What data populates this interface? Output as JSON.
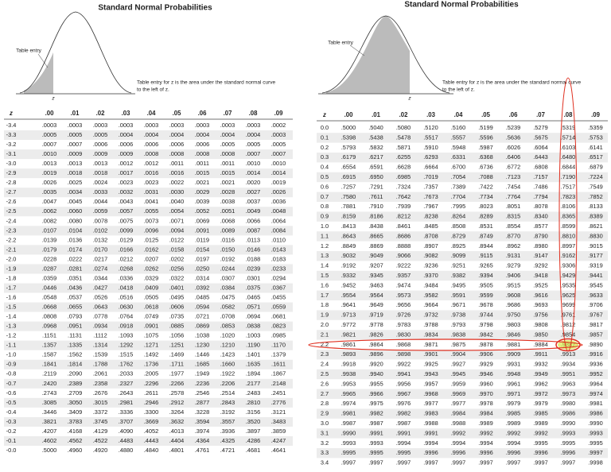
{
  "left": {
    "title": "Standard Normal Probabilities",
    "curve_label": "Table entry",
    "z_label": "z",
    "caption": [
      "Table entry for z is the area under the standard normal curve",
      "to the left of z."
    ],
    "header": [
      "z",
      ".00",
      ".01",
      ".02",
      ".03",
      ".04",
      ".05",
      ".06",
      ".07",
      ".08",
      ".09"
    ],
    "rows": [
      [
        "-3.4",
        ".0003",
        ".0003",
        ".0003",
        ".0003",
        ".0003",
        ".0003",
        ".0003",
        ".0003",
        ".0003",
        ".0002"
      ],
      [
        "-3.3",
        ".0005",
        ".0005",
        ".0005",
        ".0004",
        ".0004",
        ".0004",
        ".0004",
        ".0004",
        ".0004",
        ".0003"
      ],
      [
        "-3.2",
        ".0007",
        ".0007",
        ".0006",
        ".0006",
        ".0006",
        ".0006",
        ".0006",
        ".0005",
        ".0005",
        ".0005"
      ],
      [
        "-3.1",
        ".0010",
        ".0009",
        ".0009",
        ".0009",
        ".0008",
        ".0008",
        ".0008",
        ".0008",
        ".0007",
        ".0007"
      ],
      [
        "-3.0",
        ".0013",
        ".0013",
        ".0013",
        ".0012",
        ".0012",
        ".0011",
        ".0011",
        ".0011",
        ".0010",
        ".0010"
      ],
      [
        "-2.9",
        ".0019",
        ".0018",
        ".0018",
        ".0017",
        ".0016",
        ".0016",
        ".0015",
        ".0015",
        ".0014",
        ".0014"
      ],
      [
        "-2.8",
        ".0026",
        ".0025",
        ".0024",
        ".0023",
        ".0023",
        ".0022",
        ".0021",
        ".0021",
        ".0020",
        ".0019"
      ],
      [
        "-2.7",
        ".0035",
        ".0034",
        ".0033",
        ".0032",
        ".0031",
        ".0030",
        ".0029",
        ".0028",
        ".0027",
        ".0026"
      ],
      [
        "-2.6",
        ".0047",
        ".0045",
        ".0044",
        ".0043",
        ".0041",
        ".0040",
        ".0039",
        ".0038",
        ".0037",
        ".0036"
      ],
      [
        "-2.5",
        ".0062",
        ".0060",
        ".0059",
        ".0057",
        ".0055",
        ".0054",
        ".0052",
        ".0051",
        ".0049",
        ".0048"
      ],
      [
        "-2.4",
        ".0082",
        ".0080",
        ".0078",
        ".0075",
        ".0073",
        ".0071",
        ".0069",
        ".0068",
        ".0066",
        ".0064"
      ],
      [
        "-2.3",
        ".0107",
        ".0104",
        ".0102",
        ".0099",
        ".0096",
        ".0094",
        ".0091",
        ".0089",
        ".0087",
        ".0084"
      ],
      [
        "-2.2",
        ".0139",
        ".0136",
        ".0132",
        ".0129",
        ".0125",
        ".0122",
        ".0119",
        ".0116",
        ".0113",
        ".0110"
      ],
      [
        "-2.1",
        ".0179",
        ".0174",
        ".0170",
        ".0166",
        ".0162",
        ".0158",
        ".0154",
        ".0150",
        ".0146",
        ".0143"
      ],
      [
        "-2.0",
        ".0228",
        ".0222",
        ".0217",
        ".0212",
        ".0207",
        ".0202",
        ".0197",
        ".0192",
        ".0188",
        ".0183"
      ],
      [
        "-1.9",
        ".0287",
        ".0281",
        ".0274",
        ".0268",
        ".0262",
        ".0256",
        ".0250",
        ".0244",
        ".0239",
        ".0233"
      ],
      [
        "-1.8",
        ".0359",
        ".0351",
        ".0344",
        ".0336",
        ".0329",
        ".0322",
        ".0314",
        ".0307",
        ".0301",
        ".0294"
      ],
      [
        "-1.7",
        ".0446",
        ".0436",
        ".0427",
        ".0418",
        ".0409",
        ".0401",
        ".0392",
        ".0384",
        ".0375",
        ".0367"
      ],
      [
        "-1.6",
        ".0548",
        ".0537",
        ".0526",
        ".0516",
        ".0505",
        ".0495",
        ".0485",
        ".0475",
        ".0465",
        ".0455"
      ],
      [
        "-1.5",
        ".0668",
        ".0655",
        ".0643",
        ".0630",
        ".0618",
        ".0606",
        ".0594",
        ".0582",
        ".0571",
        ".0559"
      ],
      [
        "-1.4",
        ".0808",
        ".0793",
        ".0778",
        ".0764",
        ".0749",
        ".0735",
        ".0721",
        ".0708",
        ".0694",
        ".0681"
      ],
      [
        "-1.3",
        ".0968",
        ".0951",
        ".0934",
        ".0918",
        ".0901",
        ".0885",
        ".0869",
        ".0853",
        ".0838",
        ".0823"
      ],
      [
        "-1.2",
        ".1151",
        ".1131",
        ".1112",
        ".1093",
        ".1075",
        ".1056",
        ".1038",
        ".1020",
        ".1003",
        ".0985"
      ],
      [
        "-1.1",
        ".1357",
        ".1335",
        ".1314",
        ".1292",
        ".1271",
        ".1251",
        ".1230",
        ".1210",
        ".1190",
        ".1170"
      ],
      [
        "-1.0",
        ".1587",
        ".1562",
        ".1539",
        ".1515",
        ".1492",
        ".1469",
        ".1446",
        ".1423",
        ".1401",
        ".1379"
      ],
      [
        "-0.9",
        ".1841",
        ".1814",
        ".1788",
        ".1762",
        ".1736",
        ".1711",
        ".1685",
        ".1660",
        ".1635",
        ".1611"
      ],
      [
        "-0.8",
        ".2119",
        ".2090",
        ".2061",
        ".2033",
        ".2005",
        ".1977",
        ".1949",
        ".1922",
        ".1894",
        ".1867"
      ],
      [
        "-0.7",
        ".2420",
        ".2389",
        ".2358",
        ".2327",
        ".2296",
        ".2266",
        ".2236",
        ".2206",
        ".2177",
        ".2148"
      ],
      [
        "-0.6",
        ".2743",
        ".2709",
        ".2676",
        ".2643",
        ".2611",
        ".2578",
        ".2546",
        ".2514",
        ".2483",
        ".2451"
      ],
      [
        "-0.5",
        ".3085",
        ".3050",
        ".3015",
        ".2981",
        ".2946",
        ".2912",
        ".2877",
        ".2843",
        ".2810",
        ".2776"
      ],
      [
        "-0.4",
        ".3446",
        ".3409",
        ".3372",
        ".3336",
        ".3300",
        ".3264",
        ".3228",
        ".3192",
        ".3156",
        ".3121"
      ],
      [
        "-0.3",
        ".3821",
        ".3783",
        ".3745",
        ".3707",
        ".3669",
        ".3632",
        ".3594",
        ".3557",
        ".3520",
        ".3483"
      ],
      [
        "-0.2",
        ".4207",
        ".4168",
        ".4129",
        ".4090",
        ".4052",
        ".4013",
        ".3974",
        ".3936",
        ".3897",
        ".3859"
      ],
      [
        "-0.1",
        ".4602",
        ".4562",
        ".4522",
        ".4483",
        ".4443",
        ".4404",
        ".4364",
        ".4325",
        ".4286",
        ".4247"
      ],
      [
        "-0.0",
        ".5000",
        ".4960",
        ".4920",
        ".4880",
        ".4840",
        ".4801",
        ".4761",
        ".4721",
        ".4681",
        ".4641"
      ]
    ]
  },
  "right": {
    "title": "Standard Normal Probabilities",
    "curve_label": "Table entry",
    "z_label": "z",
    "caption": [
      "Table entry for z is the area under the standard normal curve",
      "to the left of z."
    ],
    "header": [
      "z",
      ".00",
      ".01",
      ".02",
      ".03",
      ".04",
      ".05",
      ".06",
      ".07",
      ".08",
      ".09"
    ],
    "rows": [
      [
        "0.0",
        ".5000",
        ".5040",
        ".5080",
        ".5120",
        ".5160",
        ".5199",
        ".5239",
        ".5279",
        ".5319",
        ".5359"
      ],
      [
        "0.1",
        ".5398",
        ".5438",
        ".5478",
        ".5517",
        ".5557",
        ".5596",
        ".5636",
        ".5675",
        ".5714",
        ".5753"
      ],
      [
        "0.2",
        ".5793",
        ".5832",
        ".5871",
        ".5910",
        ".5948",
        ".5987",
        ".6026",
        ".6064",
        ".6103",
        ".6141"
      ],
      [
        "0.3",
        ".6179",
        ".6217",
        ".6255",
        ".6293",
        ".6331",
        ".6368",
        ".6406",
        ".6443",
        ".6480",
        ".6517"
      ],
      [
        "0.4",
        ".6554",
        ".6591",
        ".6628",
        ".6664",
        ".6700",
        ".6736",
        ".6772",
        ".6808",
        ".6844",
        ".6879"
      ],
      [
        "0.5",
        ".6915",
        ".6950",
        ".6985",
        ".7019",
        ".7054",
        ".7088",
        ".7123",
        ".7157",
        ".7190",
        ".7224"
      ],
      [
        "0.6",
        ".7257",
        ".7291",
        ".7324",
        ".7357",
        ".7389",
        ".7422",
        ".7454",
        ".7486",
        ".7517",
        ".7549"
      ],
      [
        "0.7",
        ".7580",
        ".7611",
        ".7642",
        ".7673",
        ".7704",
        ".7734",
        ".7764",
        ".7794",
        ".7823",
        ".7852"
      ],
      [
        "0.8",
        ".7881",
        ".7910",
        ".7939",
        ".7967",
        ".7995",
        ".8023",
        ".8051",
        ".8078",
        ".8106",
        ".8133"
      ],
      [
        "0.9",
        ".8159",
        ".8186",
        ".8212",
        ".8238",
        ".8264",
        ".8289",
        ".8315",
        ".8340",
        ".8365",
        ".8389"
      ],
      [
        "1.0",
        ".8413",
        ".8438",
        ".8461",
        ".8485",
        ".8508",
        ".8531",
        ".8554",
        ".8577",
        ".8599",
        ".8621"
      ],
      [
        "1.1",
        ".8643",
        ".8665",
        ".8686",
        ".8708",
        ".8729",
        ".8749",
        ".8770",
        ".8790",
        ".8810",
        ".8830"
      ],
      [
        "1.2",
        ".8849",
        ".8869",
        ".8888",
        ".8907",
        ".8925",
        ".8944",
        ".8962",
        ".8980",
        ".8997",
        ".9015"
      ],
      [
        "1.3",
        ".9032",
        ".9049",
        ".9066",
        ".9082",
        ".9099",
        ".9115",
        ".9131",
        ".9147",
        ".9162",
        ".9177"
      ],
      [
        "1.4",
        ".9192",
        ".9207",
        ".9222",
        ".9236",
        ".9251",
        ".9265",
        ".9279",
        ".9292",
        ".9306",
        ".9319"
      ],
      [
        "1.5",
        ".9332",
        ".9345",
        ".9357",
        ".9370",
        ".9382",
        ".9394",
        ".9406",
        ".9418",
        ".9429",
        ".9441"
      ],
      [
        "1.6",
        ".9452",
        ".9463",
        ".9474",
        ".9484",
        ".9495",
        ".9505",
        ".9515",
        ".9525",
        ".9535",
        ".9545"
      ],
      [
        "1.7",
        ".9554",
        ".9564",
        ".9573",
        ".9582",
        ".9591",
        ".9599",
        ".9608",
        ".9616",
        ".9625",
        ".9633"
      ],
      [
        "1.8",
        ".9641",
        ".9649",
        ".9656",
        ".9664",
        ".9671",
        ".9678",
        ".9686",
        ".9693",
        ".9699",
        ".9706"
      ],
      [
        "1.9",
        ".9713",
        ".9719",
        ".9726",
        ".9732",
        ".9738",
        ".9744",
        ".9750",
        ".9756",
        ".9761",
        ".9767"
      ],
      [
        "2.0",
        ".9772",
        ".9778",
        ".9783",
        ".9788",
        ".9793",
        ".9798",
        ".9803",
        ".9808",
        ".9812",
        ".9817"
      ],
      [
        "2.1",
        ".9821",
        ".9826",
        ".9830",
        ".9834",
        ".9838",
        ".9842",
        ".9846",
        ".9850",
        ".9854",
        ".9857"
      ],
      [
        "2.2",
        ".9861",
        ".9864",
        ".9868",
        ".9871",
        ".9875",
        ".9878",
        ".9881",
        ".9884",
        ".9887",
        ".9890"
      ],
      [
        "2.3",
        ".9893",
        ".9896",
        ".9898",
        ".9901",
        ".9904",
        ".9906",
        ".9909",
        ".9911",
        ".9913",
        ".9916"
      ],
      [
        "2.4",
        ".9918",
        ".9920",
        ".9922",
        ".9925",
        ".9927",
        ".9929",
        ".9931",
        ".9932",
        ".9934",
        ".9936"
      ],
      [
        "2.5",
        ".9938",
        ".9940",
        ".9941",
        ".9943",
        ".9945",
        ".9946",
        ".9948",
        ".9949",
        ".9951",
        ".9952"
      ],
      [
        "2.6",
        ".9953",
        ".9955",
        ".9956",
        ".9957",
        ".9959",
        ".9960",
        ".9961",
        ".9962",
        ".9963",
        ".9964"
      ],
      [
        "2.7",
        ".9965",
        ".9966",
        ".9967",
        ".9968",
        ".9969",
        ".9970",
        ".9971",
        ".9972",
        ".9973",
        ".9974"
      ],
      [
        "2.8",
        ".9974",
        ".9975",
        ".9976",
        ".9977",
        ".9977",
        ".9978",
        ".9979",
        ".9979",
        ".9980",
        ".9981"
      ],
      [
        "2.9",
        ".9981",
        ".9982",
        ".9982",
        ".9983",
        ".9984",
        ".9984",
        ".9985",
        ".9985",
        ".9986",
        ".9986"
      ],
      [
        "3.0",
        ".9987",
        ".9987",
        ".9987",
        ".9988",
        ".9988",
        ".9989",
        ".9989",
        ".9989",
        ".9990",
        ".9990"
      ],
      [
        "3.1",
        ".9990",
        ".9991",
        ".9991",
        ".9991",
        ".9992",
        ".9992",
        ".9992",
        ".9992",
        ".9993",
        ".9993"
      ],
      [
        "3.2",
        ".9993",
        ".9993",
        ".9994",
        ".9994",
        ".9994",
        ".9994",
        ".9994",
        ".9995",
        ".9995",
        ".9995"
      ],
      [
        "3.3",
        ".9995",
        ".9995",
        ".9995",
        ".9996",
        ".9996",
        ".9996",
        ".9996",
        ".9996",
        ".9996",
        ".9997"
      ],
      [
        "3.4",
        ".9997",
        ".9997",
        ".9997",
        ".9997",
        ".9997",
        ".9997",
        ".9997",
        ".9997",
        ".9997",
        ".9998"
      ]
    ]
  }
}
